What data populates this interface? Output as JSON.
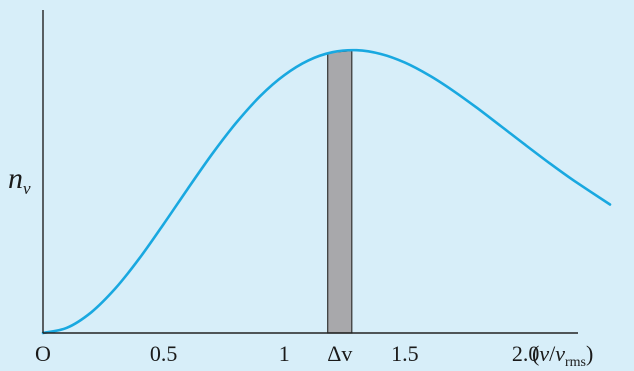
{
  "chart_data": {
    "type": "line",
    "title": "",
    "ylabel": "n",
    "ylabel_sub": "v",
    "xlabel_prefix": "(",
    "xlabel_num": "v",
    "xlabel_slash": "/",
    "xlabel_den": "v",
    "xlabel_den_sub": "rms",
    "xlabel_suffix": ")",
    "origin_label": "O",
    "xlim": [
      0,
      2.35
    ],
    "ylim": [
      0,
      1.12
    ],
    "x_ticks": [
      {
        "value": 0.5,
        "label": "0.5"
      },
      {
        "value": 1,
        "label": "1"
      },
      {
        "value": 1.5,
        "label": "1.5"
      },
      {
        "value": 2.0,
        "label": "2.0"
      }
    ],
    "series": [
      {
        "name": "",
        "color": "#19a8e0",
        "x": [
          0,
          0.1,
          0.2,
          0.3,
          0.4,
          0.5,
          0.6,
          0.7,
          0.8,
          0.9,
          1.0,
          1.1,
          1.2,
          1.3,
          1.4,
          1.5,
          1.6,
          1.7,
          1.8,
          1.9,
          2.0,
          2.1,
          2.2,
          2.35
        ],
        "y": [
          0,
          0.0178,
          0.0697,
          0.15,
          0.2516,
          0.3662,
          0.4852,
          0.6009,
          0.7064,
          0.7964,
          0.8672,
          0.9168,
          0.9445,
          0.9511,
          0.9385,
          0.9093,
          0.8669,
          0.8147,
          0.7563,
          0.6945,
          0.632,
          0.5709,
          0.5127,
          0.4321
        ]
      }
    ],
    "shaded_band": {
      "label": "Δv",
      "x_start": 1.18,
      "x_end": 1.28,
      "color": "#a8a8ab"
    }
  }
}
